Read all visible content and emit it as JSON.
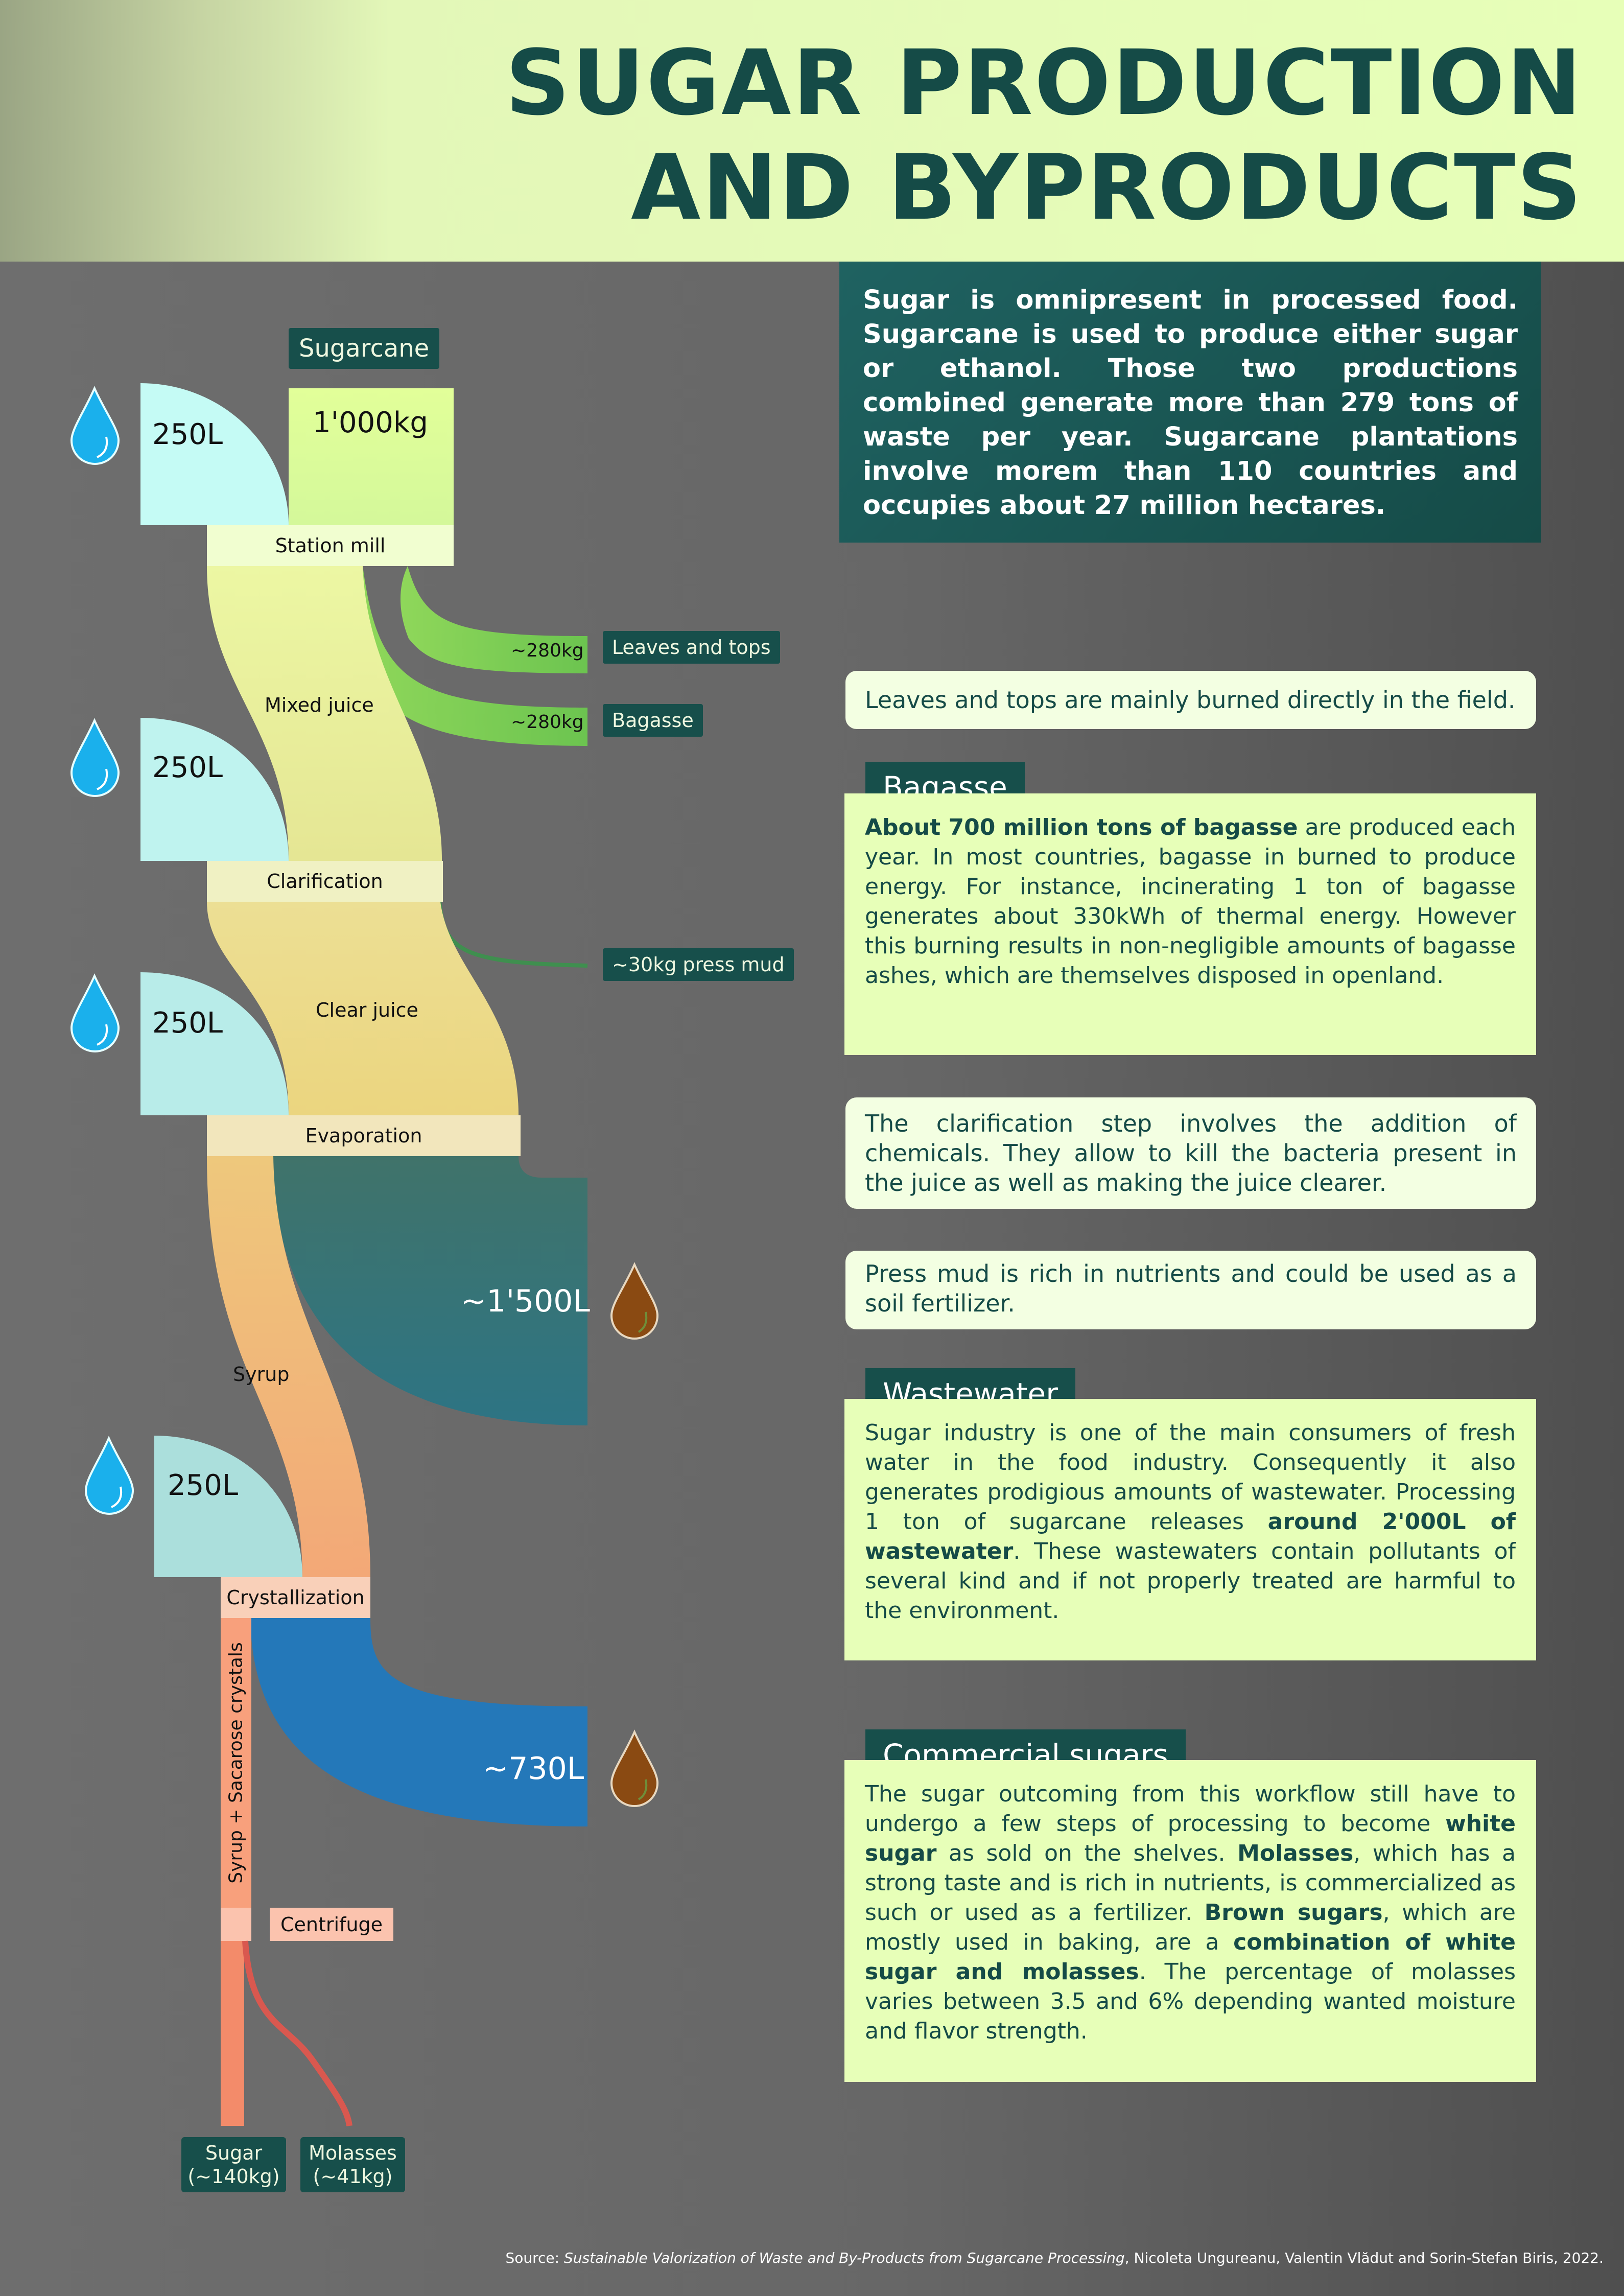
{
  "header": {
    "title_line1": "SUGAR PRODUCTION",
    "title_line2": "AND BYPRODUCTS"
  },
  "intro": "Sugar is omnipresent in processed food. Sugarcane is used to produce either sugar or ethanol. Those two productions combined generate more than 279 tons of waste per year. Sugarcane plantations involve morem than 110 countries and occupies about 27 million hectares.",
  "flow": {
    "input_label": "Sugarcane",
    "input_amount": "1'000kg",
    "water_inputs": [
      "250L",
      "250L",
      "250L",
      "250L"
    ],
    "stages": {
      "station_mill": "Station mill",
      "clarification": "Clarification",
      "evaporation": "Evaporation",
      "crystallization": "Crystallization",
      "centrifuge": "Centrifuge"
    },
    "streams": {
      "mixed_juice": "Mixed juice",
      "clear_juice": "Clear juice",
      "syrup": "Syrup",
      "syrup_crystals": "Syrup + Sacarose crystals"
    },
    "outputs": {
      "leaves_amount": "~280kg",
      "leaves_label": "Leaves and tops",
      "bagasse_amount": "~280kg",
      "bagasse_label": "Bagasse",
      "press_mud": "~30kg press mud",
      "wastewater_1": "~1'500L",
      "wastewater_2": "~730L",
      "sugar_line1": "Sugar",
      "sugar_line2": "(~140kg)",
      "molasses_line1": "Molasses",
      "molasses_line2": "(~41kg)"
    }
  },
  "notes": {
    "leaves": "Leaves and tops are mainly burned directly in the field.",
    "bagasse_title": "Bagasse",
    "bagasse_bold": "About 700 million tons of bagasse",
    "bagasse_text": " are produced each year. In most countries, bagasse in burned to produce energy. For instance, incinerating 1 ton of bagasse generates about 330kWh of thermal energy. However this burning results in non-negligible amounts of bagasse ashes, which are themselves disposed in openland.",
    "clarification": "The clarification step involves the addition of chemicals. They allow to kill the bacteria present in the juice as well as making the juice clearer.",
    "press_mud": "Press mud is rich in nutrients and could be used as a soil fertilizer.",
    "wastewater_title": "Wastewater",
    "wastewater_text1": "Sugar industry is one of the main consumers of fresh water in the food industry. Consequently it also generates prodigious amounts of wastewater. Processing 1 ton of sugarcane releases ",
    "wastewater_bold": "around 2'000L of wastewater",
    "wastewater_text2": ". These wastewaters contain pollutants of several kind and if not properly treated are harmful to the environment.",
    "sugars_title": "Commercial sugars",
    "sugars_t1": "The sugar outcoming from this workflow still have to undergo a few steps of processing to become ",
    "sugars_b1": "white sugar",
    "sugars_t2": " as sold on the shelves. ",
    "sugars_b2": "Molasses",
    "sugars_t3": ", which has a strong taste and is rich in nutrients, is commercialized as such or used as a fertilizer. ",
    "sugars_b3": "Brown sugars",
    "sugars_t4": ", which are mostly used in baking, are a ",
    "sugars_b4": "combination of white sugar and molasses",
    "sugars_t5": ". The percentage of molasses varies between 3.5 and 6% depending wanted moisture and flavor strength."
  },
  "source": {
    "prefix": "Source: ",
    "title": "Sustainable Valorization of Waste and By-Products from Sugarcane Processing",
    "authors": ", Nicoleta Ungureanu, Valentin Vlădut and Sorin-Stefan Biris, 2022."
  },
  "colors": {
    "dark_teal": "#174f4b",
    "light_green": "#e7ffb8",
    "water_blue": "#1ab0ec",
    "brown_drop": "#8a4a12"
  }
}
